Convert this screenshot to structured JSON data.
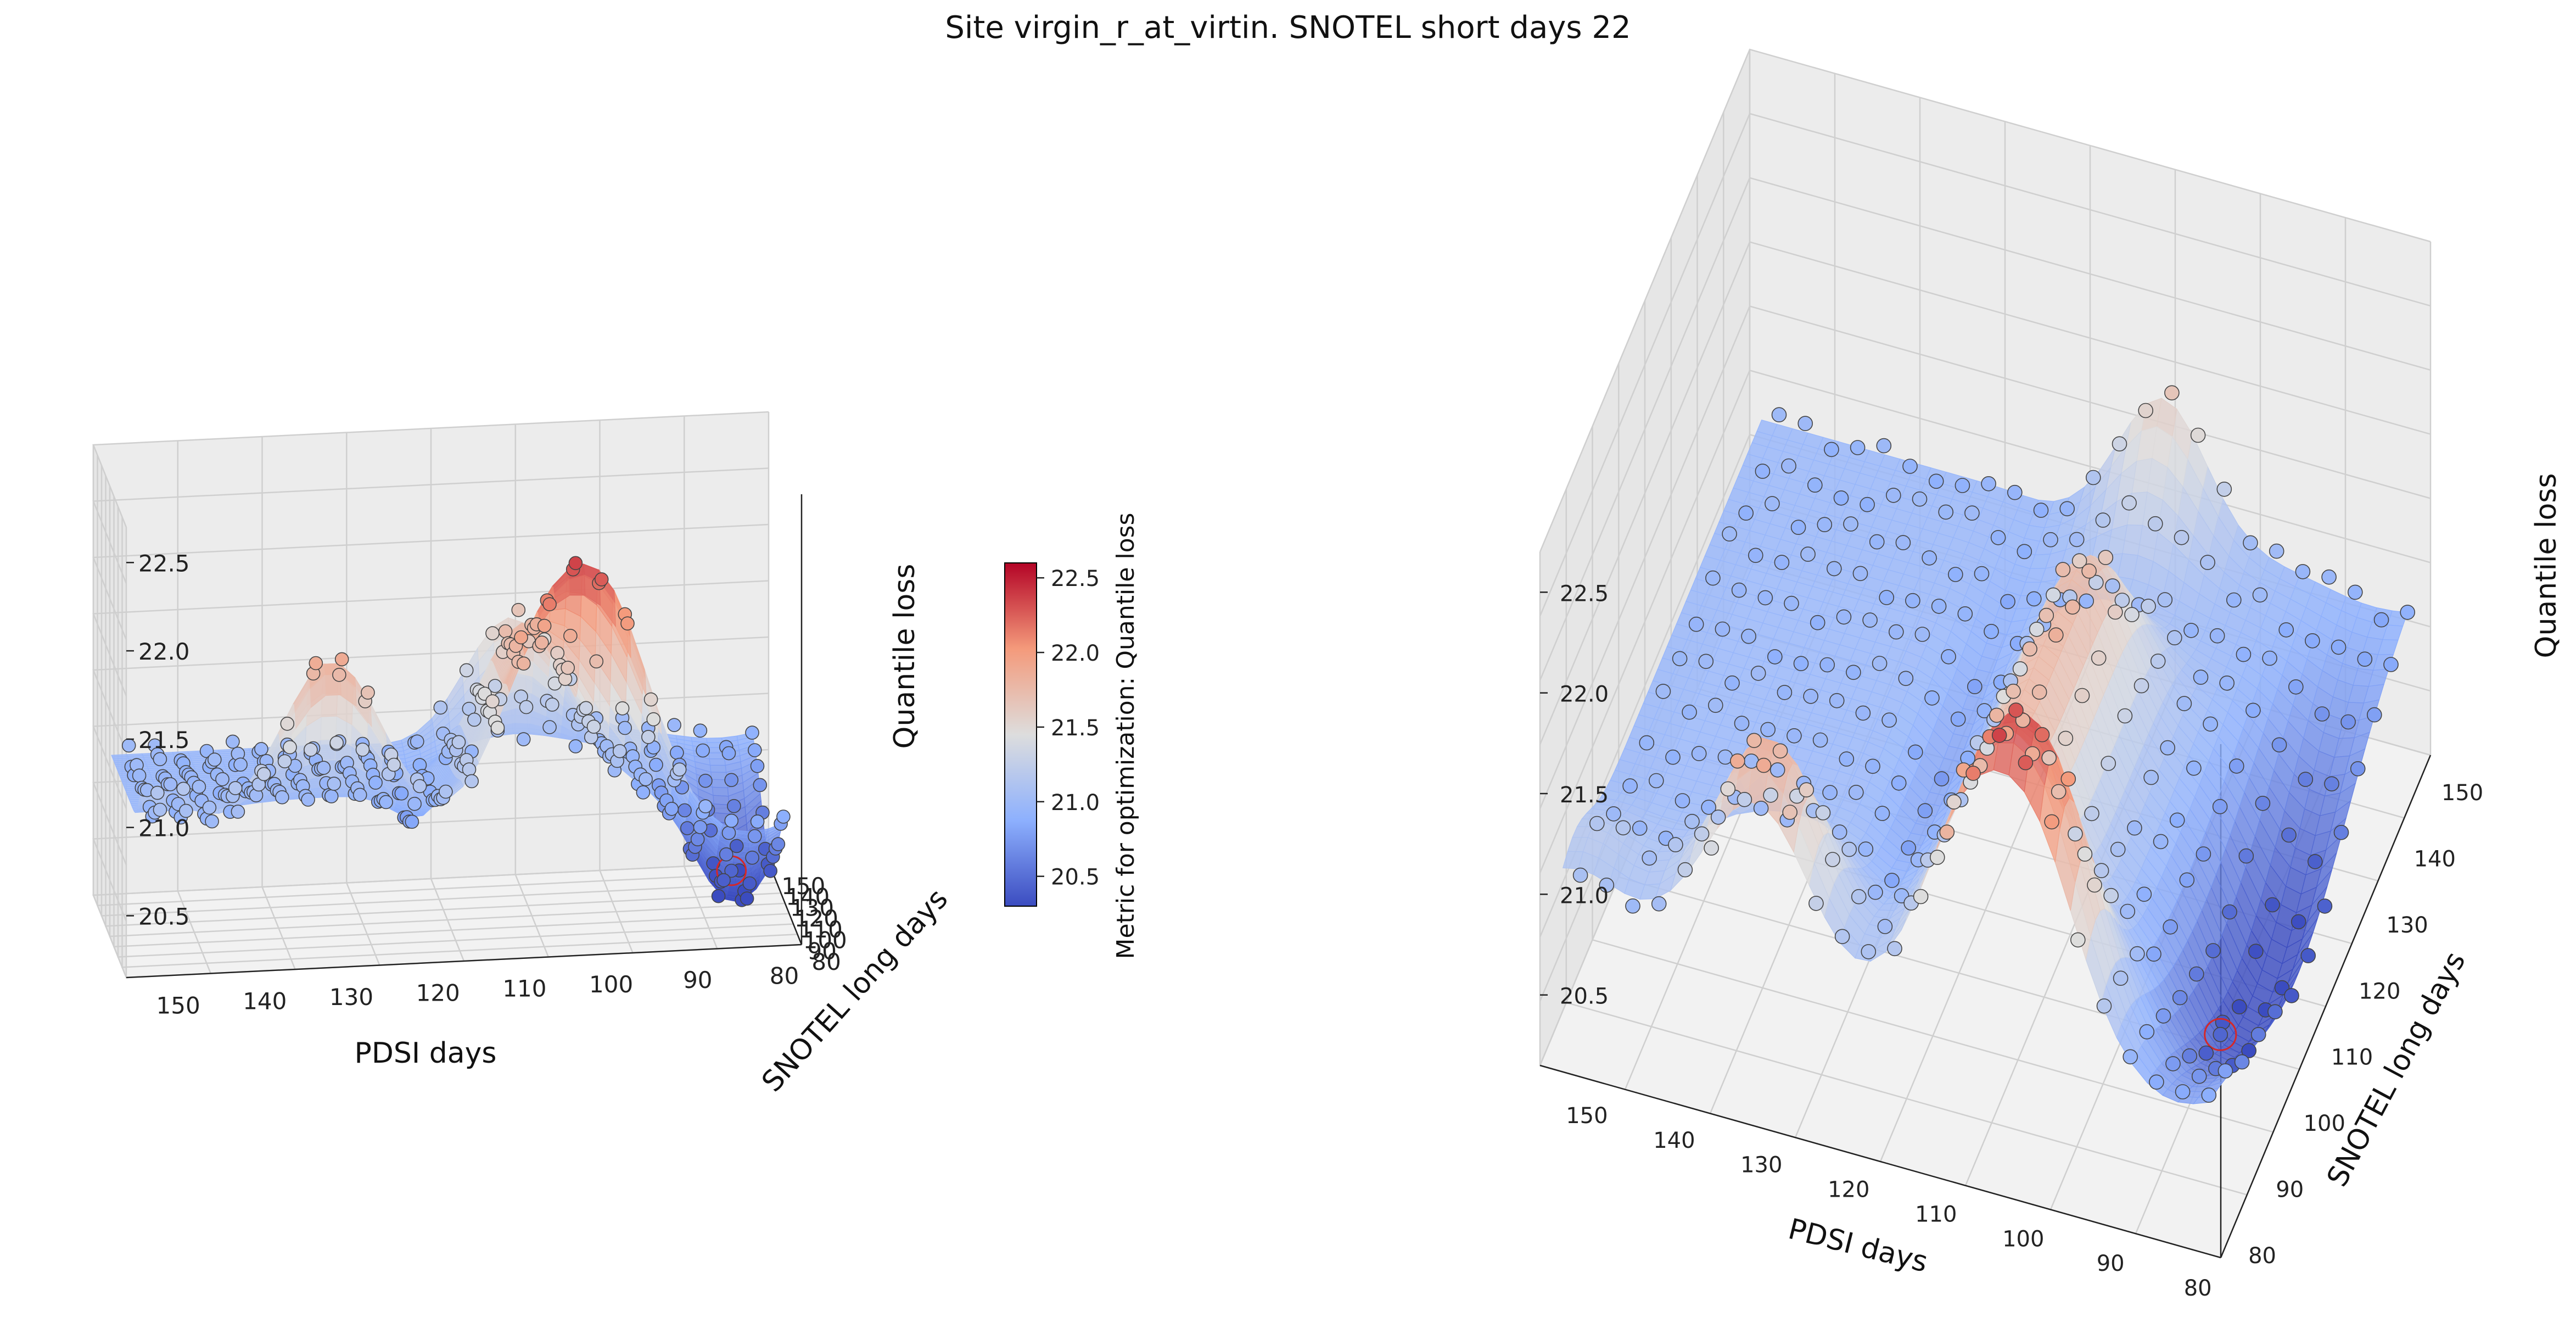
{
  "chart_data": {
    "type": "3d-surface-scatter",
    "title": "Site virgin_r_at_virtin. SNOTEL short days 22",
    "xlabel": "PDSI days",
    "ylabel": "SNOTEL long days",
    "zlabel": "Quantile loss",
    "x_ticks": [
      "150",
      "140",
      "130",
      "120",
      "110",
      "100",
      "90",
      "80"
    ],
    "y_ticks": [
      "80",
      "90",
      "100",
      "110",
      "120",
      "130",
      "140",
      "150"
    ],
    "z_ticks": [
      "20.5",
      "21.0",
      "21.5",
      "22.0",
      "22.5"
    ],
    "xlim": [
      78,
      156
    ],
    "ylim": [
      78,
      154
    ],
    "zlim": [
      20.15,
      22.7
    ],
    "colormap": "coolwarm",
    "colorbar": {
      "label": "Metric for optimization: Quantile loss",
      "ticks": [
        "20.5",
        "21.0",
        "21.5",
        "22.0",
        "22.5"
      ],
      "range": [
        20.3,
        22.6
      ]
    },
    "best_point": {
      "pdsi_days": 85,
      "snotel_long_days": 100,
      "quantile_loss": 20.45
    },
    "left_view_tick_labels": {
      "x": [
        "150",
        "140",
        "130",
        "120",
        "110",
        "100",
        "90",
        "80"
      ],
      "y": [
        "80",
        "90",
        "100",
        "110",
        "120",
        "130",
        "140",
        "150"
      ]
    },
    "colors": {
      "low": "#3b4cc0",
      "mid": "#dddddd",
      "high": "#b40426",
      "best_marker_ring": "#d62728",
      "pane": "#f2f2f2",
      "grid": "#cccccc"
    }
  }
}
